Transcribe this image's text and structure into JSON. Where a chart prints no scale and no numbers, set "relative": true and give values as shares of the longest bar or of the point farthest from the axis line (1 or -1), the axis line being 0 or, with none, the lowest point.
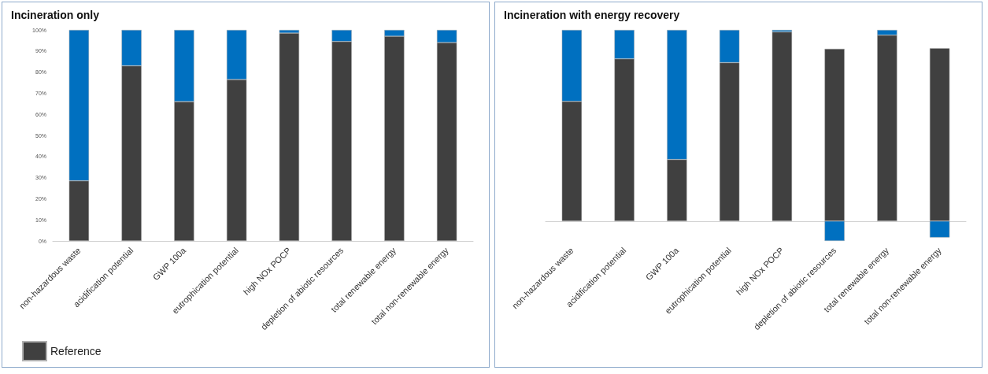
{
  "chart_data": [
    {
      "type": "bar",
      "title": "Incineration only",
      "stacked": true,
      "legend": "bottom left",
      "grid": false,
      "categories": [
        "non-hazardous waste",
        "acidification potential",
        "GWP 100a",
        "eutrophication potential",
        "high NOx POCP",
        "depletion of abiotic resources",
        "total renewable energy",
        "total non-renewable energy"
      ],
      "ylim": [
        0,
        100
      ],
      "yticks": [
        {
          "value": 0,
          "label": "0%"
        },
        {
          "value": 10,
          "label": "10%"
        },
        {
          "value": 20,
          "label": "20%"
        },
        {
          "value": 30,
          "label": "30%"
        },
        {
          "value": 40,
          "label": "40%"
        },
        {
          "value": 50,
          "label": "50%"
        },
        {
          "value": 60,
          "label": "60%"
        },
        {
          "value": 70,
          "label": "70%"
        },
        {
          "value": 80,
          "label": "80%"
        },
        {
          "value": 90,
          "label": "90%"
        },
        {
          "value": 100,
          "label": "100%"
        }
      ],
      "series": [
        {
          "name": "Reference",
          "color": "#404040",
          "values": [
            28.5,
            83,
            66,
            76.5,
            98.5,
            94.5,
            97,
            94
          ]
        },
        {
          "color": "#0070c0",
          "values": [
            71.5,
            17,
            34,
            23.5,
            1.5,
            5.5,
            3,
            6
          ]
        }
      ]
    },
    {
      "type": "bar",
      "title": "Incineration with energy recovery",
      "stacked": true,
      "relative": true,
      "grid": false,
      "categories": [
        "non-hazardous waste",
        "acidification potential",
        "GWP 100a",
        "eutrophication potential",
        "high NOx POCP",
        "depletion of abiotic resources",
        "total renewable energy",
        "total non-renewable energy"
      ],
      "series": [
        {
          "color": "#404040",
          "values": [
            0.626,
            0.849,
            0.322,
            0.829,
            0.99,
            0.901,
            0.973,
            0.904
          ]
        },
        {
          "color": "#0070c0",
          "values": [
            0.374,
            0.151,
            0.678,
            0.171,
            0.01,
            -0.104,
            0.027,
            -0.086
          ]
        }
      ]
    }
  ]
}
